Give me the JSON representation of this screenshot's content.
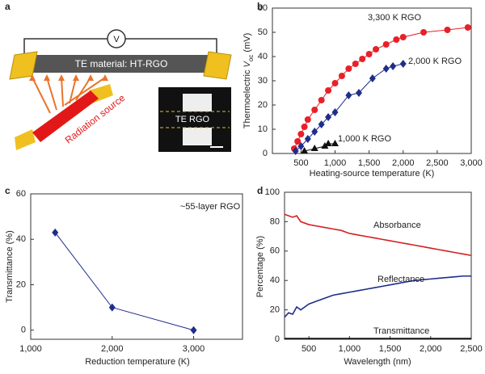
{
  "diagram": {
    "label": "a",
    "voltmeter": "V",
    "material": "TE material: HT-RGO",
    "source": "Radiation source",
    "inset": "TE RGO"
  },
  "chart_data": [
    {
      "type": "line",
      "label": "b",
      "xlabel": "Heating-source temperature (K)",
      "ylabel": [
        "Thermoelectric ",
        "V",
        "oc",
        " (mV)"
      ],
      "xlim": [
        80,
        3000
      ],
      "xticks": [
        {
          "value": 500,
          "label": "500"
        },
        {
          "value": 1000,
          "label": "1,000"
        },
        {
          "value": 1500,
          "label": "1,500"
        },
        {
          "value": 2000,
          "label": "2,000"
        },
        {
          "value": 2500,
          "label": "2,500"
        },
        {
          "value": 3000,
          "label": "3,000"
        }
      ],
      "ylim": [
        0,
        60
      ],
      "yticks": [
        0,
        10,
        20,
        30,
        40,
        50,
        60
      ],
      "series": [
        {
          "name": "3,300 K RGO",
          "color": "#e8202a",
          "marker": "circle",
          "x": [
            400,
            450,
            500,
            550,
            600,
            700,
            800,
            900,
            1000,
            1100,
            1200,
            1300,
            1400,
            1500,
            1600,
            1750,
            1900,
            2000,
            2300,
            2650,
            2950
          ],
          "values": [
            2,
            5,
            8,
            11,
            14,
            18,
            22,
            26,
            29,
            32,
            35,
            37,
            39,
            41,
            43,
            45,
            47,
            48,
            50,
            51,
            52
          ]
        },
        {
          "name": "2,000 K RGO",
          "color": "#1f2d8a",
          "marker": "diamond",
          "x": [
            420,
            500,
            600,
            700,
            800,
            900,
            1000,
            1200,
            1350,
            1550,
            1750,
            1850,
            2000
          ],
          "values": [
            1,
            3,
            6,
            9,
            12,
            15,
            17,
            24,
            25,
            31,
            35,
            36,
            37
          ]
        },
        {
          "name": "1,000 K RGO",
          "color": "#111111",
          "marker": "triangle",
          "x": [
            550,
            700,
            850,
            900,
            1000
          ],
          "values": [
            1,
            2,
            3,
            4,
            4
          ]
        }
      ]
    },
    {
      "type": "line",
      "label": "c",
      "xlabel": "Reduction temperature (K)",
      "ylabel": [
        "Transmittance (%)"
      ],
      "annotation": "~55-layer RGO",
      "xlim": [
        1000,
        3600
      ],
      "xticks": [
        {
          "value": 1000,
          "label": "1,000"
        },
        {
          "value": 2000,
          "label": "2,000"
        },
        {
          "value": 3000,
          "label": "3,000"
        }
      ],
      "ylim": [
        -4,
        60
      ],
      "yticks": [
        0,
        20,
        40,
        60
      ],
      "series": [
        {
          "color": "#1f2d8a",
          "marker": "diamond",
          "x": [
            1300,
            2000,
            3000
          ],
          "values": [
            43,
            10,
            0
          ]
        }
      ]
    },
    {
      "type": "line",
      "label": "d",
      "xlabel": "Wavelength (nm)",
      "ylabel": [
        "Percentage (%)"
      ],
      "xlim": [
        200,
        2500
      ],
      "xticks": [
        {
          "value": 500,
          "label": "500"
        },
        {
          "value": 1000,
          "label": "1,000"
        },
        {
          "value": 1500,
          "label": "1,500"
        },
        {
          "value": 2000,
          "label": "2,000"
        },
        {
          "value": 2500,
          "label": "2,500"
        }
      ],
      "ylim": [
        0,
        100
      ],
      "yticks": [
        0,
        20,
        40,
        60,
        80,
        100
      ],
      "x": [
        200,
        250,
        300,
        350,
        400,
        500,
        600,
        700,
        800,
        900,
        1000,
        1100,
        1200,
        1300,
        1400,
        1500,
        1600,
        1700,
        1800,
        1900,
        2000,
        2100,
        2200,
        2300,
        2400,
        2500
      ],
      "series": [
        {
          "name": "Absorbance",
          "color": "#d42020",
          "values": [
            85,
            84,
            83,
            84,
            80,
            78,
            77,
            76,
            75,
            74,
            72,
            71,
            70,
            69,
            68,
            67,
            66,
            65,
            64,
            63,
            62,
            61,
            60,
            59,
            58,
            57
          ]
        },
        {
          "name": "Reflectance",
          "color": "#1f2d8a",
          "values": [
            15,
            18,
            17,
            22,
            20,
            24,
            26,
            28,
            30,
            31,
            32,
            33,
            34,
            35,
            36,
            37,
            38,
            39,
            40,
            40.5,
            41,
            41.5,
            42,
            42.5,
            43,
            43
          ]
        },
        {
          "name": "Transmittance",
          "color": "#111111",
          "values": [
            0.5,
            0.5,
            0.5,
            0.5,
            0.5,
            0.5,
            0.5,
            0.5,
            0.5,
            0.5,
            0.5,
            0.5,
            0.5,
            0.5,
            0.5,
            0.5,
            0.5,
            0.5,
            0.5,
            0.5,
            0.5,
            0.5,
            0.5,
            0.5,
            0.5,
            0.5
          ]
        }
      ]
    }
  ]
}
